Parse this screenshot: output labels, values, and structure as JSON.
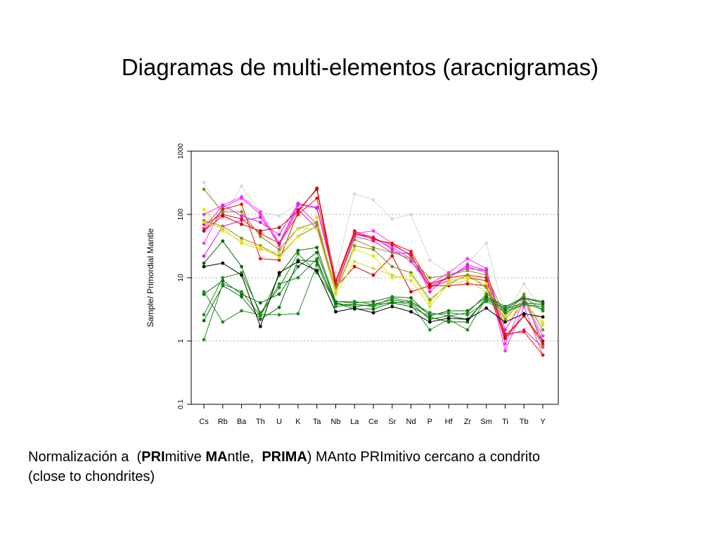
{
  "slide": {
    "title": "Diagramas de multi-elementos (aracnigramas)"
  },
  "caption": {
    "line1": [
      {
        "text": "Normalización a  (",
        "bold": false
      },
      {
        "text": "PRI",
        "bold": true
      },
      {
        "text": "mitive ",
        "bold": false
      },
      {
        "text": "MA",
        "bold": true
      },
      {
        "text": "ntle,  ",
        "bold": false
      },
      {
        "text": "PRIMA",
        "bold": true
      },
      {
        "text": ") MAnto PRImitivo cercano a condrito",
        "bold": false
      }
    ],
    "line2": "(close to chondrites)"
  },
  "chart_data": {
    "type": "line",
    "ylabel": "Sample/ Primordial Mantle",
    "xlabel": "",
    "y_scale": "log",
    "ylim": [
      0.1,
      1000
    ],
    "y_ticks": [
      "0.1",
      "1",
      "10",
      "100",
      "1000"
    ],
    "grid": "horizontal dotted lines at 1, 10, 100",
    "categories": [
      "Cs",
      "Rb",
      "Ba",
      "Th",
      "U",
      "K",
      "Ta",
      "Nb",
      "La",
      "Ce",
      "Sr",
      "Nd",
      "P",
      "Hf",
      "Zr",
      "Sm",
      "Ti",
      "Tb",
      "Y"
    ],
    "colors": {
      "gray": "#d8d8d8",
      "magenta": "#ff33ff",
      "magenta2": "#dd22dd",
      "red": "#ee1111",
      "red2": "#cc0000",
      "olive": "#8b8b22",
      "yellow": "#e6e600",
      "yellow2": "#d8d840",
      "dkgreen": "#0b6b0b",
      "green": "#1f8f1f",
      "black": "#000000"
    },
    "series": [
      {
        "color": "gray",
        "values": [
          320,
          90,
          280,
          110,
          95,
          150,
          130,
          12,
          210,
          170,
          85,
          100,
          19,
          12,
          17,
          35,
          2.5,
          8,
          3
        ]
      },
      {
        "color": "magenta",
        "values": [
          100,
          140,
          190,
          110,
          35,
          150,
          130,
          9,
          50,
          55,
          35,
          22,
          8,
          12,
          20,
          14,
          0.9,
          4.5,
          1.2
        ]
      },
      {
        "color": "magenta",
        "values": [
          35,
          130,
          180,
          100,
          32,
          140,
          70,
          6,
          48,
          42,
          30,
          20,
          7,
          10,
          15,
          12,
          0.7,
          3.5,
          0.6
        ]
      },
      {
        "color": "magenta2",
        "values": [
          22,
          65,
          80,
          90,
          35,
          120,
          60,
          7,
          45,
          38,
          25,
          24,
          6,
          11,
          14,
          13,
          1.5,
          4.5,
          1.0
        ]
      },
      {
        "color": "magenta2",
        "values": [
          60,
          140,
          95,
          75,
          48,
          145,
          125,
          8,
          52,
          44,
          28,
          18,
          7.5,
          10,
          16,
          13,
          1.2,
          1.5,
          0.8
        ]
      },
      {
        "color": "red",
        "values": [
          55,
          120,
          145,
          20,
          19,
          110,
          260,
          9,
          55,
          40,
          35,
          26,
          8,
          10,
          11,
          10,
          1.3,
          1.4,
          0.6
        ]
      },
      {
        "color": "red",
        "values": [
          70,
          100,
          85,
          50,
          35,
          100,
          180,
          8,
          50,
          42,
          33,
          23,
          7,
          9,
          10,
          9,
          1.2,
          2.5,
          0.9
        ]
      },
      {
        "color": "red2",
        "values": [
          55,
          95,
          70,
          55,
          62,
          115,
          250,
          7,
          15,
          11,
          22,
          6,
          7.5,
          7.5,
          8,
          7.5,
          1.1,
          2.5,
          1.0
        ]
      },
      {
        "color": "olive",
        "values": [
          250,
          110,
          110,
          45,
          28,
          60,
          75,
          7,
          40,
          30,
          25,
          20,
          10,
          11,
          13,
          11,
          2.5,
          5.5,
          0.8
        ]
      },
      {
        "color": "olive",
        "values": [
          80,
          65,
          42,
          32,
          22,
          45,
          65,
          6,
          32,
          28,
          15,
          12,
          4.5,
          8,
          11,
          7,
          2.2,
          4.8,
          1.5
        ]
      },
      {
        "color": "yellow",
        "values": [
          120,
          55,
          38,
          30,
          21,
          45,
          90,
          6,
          28,
          22,
          10,
          11,
          4,
          9,
          10,
          8,
          2.0,
          4.0,
          2.0
        ]
      },
      {
        "color": "yellow2",
        "values": [
          75,
          60,
          35,
          28,
          25,
          60,
          60,
          5.5,
          18,
          14,
          11,
          9,
          3.5,
          8,
          9,
          6,
          2.5,
          4.0,
          1.8
        ]
      },
      {
        "color": "dkgreen",
        "values": [
          17,
          38,
          15,
          2.5,
          11,
          27,
          30,
          4.2,
          4.0,
          4.2,
          5.0,
          4.8,
          2.5,
          3.0,
          3.0,
          5.0,
          3.5,
          4.8,
          4.2
        ]
      },
      {
        "color": "dkgreen",
        "values": [
          5.5,
          9,
          5.5,
          4,
          5.5,
          15,
          25,
          4.0,
          3.5,
          3.8,
          4.5,
          4.0,
          2.2,
          2.5,
          2.2,
          4.5,
          3.2,
          4.0,
          3.8
        ]
      },
      {
        "color": "green",
        "values": [
          2.6,
          10,
          12,
          2.8,
          7,
          24,
          12,
          4.2,
          4.2,
          3.8,
          4.0,
          4.2,
          2.6,
          2.8,
          2.6,
          4.2,
          3.0,
          3.8,
          3.5
        ]
      },
      {
        "color": "green",
        "values": [
          6,
          2.0,
          3.0,
          2.6,
          2.6,
          2.7,
          16,
          3.8,
          3.8,
          3.5,
          4.2,
          3.8,
          1.5,
          2.2,
          1.5,
          4.8,
          2.8,
          3.8,
          3.2
        ]
      },
      {
        "color": "dkgreen",
        "values": [
          2.1,
          7.5,
          5,
          2.2,
          3.4,
          19,
          18,
          4.0,
          3.2,
          3.2,
          4.0,
          3.5,
          2.4,
          2.0,
          2.0,
          5.0,
          3.2,
          4.8,
          4.0
        ]
      },
      {
        "color": "green",
        "values": [
          1.05,
          8,
          6,
          2.5,
          8,
          10,
          20,
          3.5,
          3.8,
          3.6,
          4.8,
          4.2,
          2.8,
          2.5,
          2.8,
          5.5,
          3.4,
          5.0,
          3.0
        ]
      },
      {
        "color": "black",
        "values": [
          15,
          17,
          11,
          1.7,
          12,
          18,
          13,
          2.9,
          3.3,
          2.8,
          3.5,
          2.9,
          2.0,
          2.3,
          2.2,
          3.3,
          2.0,
          2.7,
          2.4
        ]
      }
    ]
  }
}
